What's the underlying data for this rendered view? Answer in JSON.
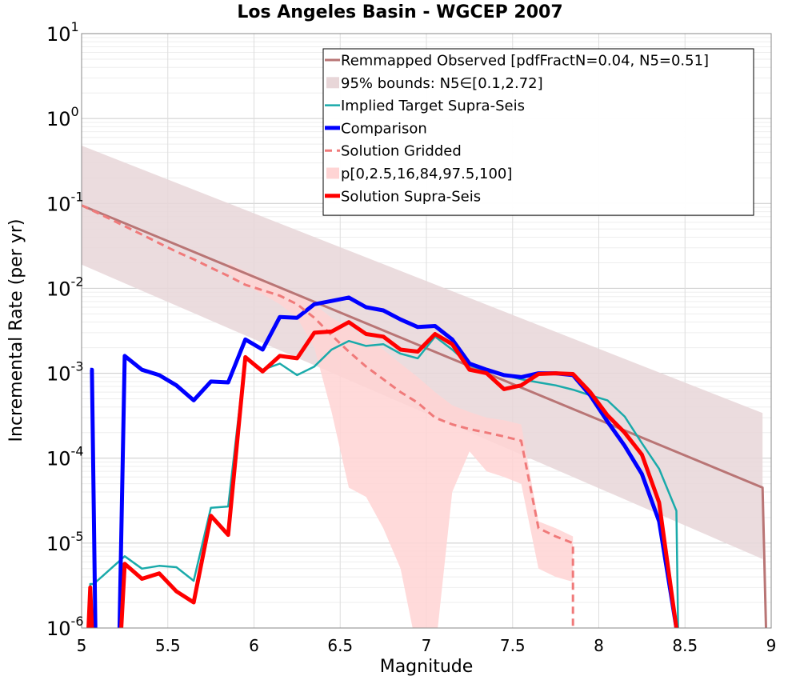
{
  "chart_data": {
    "type": "line",
    "title": "Los Angeles Basin - WGCEP 2007",
    "xlabel": "Magnitude",
    "ylabel": "Incremental Rate (per yr)",
    "xlim": [
      5,
      9
    ],
    "ylim": [
      1e-06,
      10
    ],
    "yscale": "log",
    "grid": true,
    "legend_position": "top-right",
    "x_ticks": [
      "5",
      "5.5",
      "6",
      "6.5",
      "7",
      "7.5",
      "8",
      "8.5",
      "9"
    ],
    "y_ticks": [
      {
        "base": "10",
        "exp": "-6"
      },
      {
        "base": "10",
        "exp": "-5"
      },
      {
        "base": "10",
        "exp": "-4"
      },
      {
        "base": "10",
        "exp": "-3"
      },
      {
        "base": "10",
        "exp": "-2"
      },
      {
        "base": "10",
        "exp": "-1"
      },
      {
        "base": "10",
        "exp": "0"
      },
      {
        "base": "10",
        "exp": "1"
      }
    ],
    "bands": [
      {
        "name": "95% bounds: N5∈[0.1,2.72]",
        "color": "#e8d6d8",
        "x": [
          5.0,
          8.95
        ],
        "lower": [
          0.019,
          6.5e-06
        ],
        "upper": [
          0.48,
          0.00034
        ]
      },
      {
        "name": "p[0,2.5,16,84,97.5,100]",
        "color": "#ffd4d4",
        "x": [
          5.85,
          5.95,
          6.05,
          6.15,
          6.25,
          6.35,
          6.45,
          6.55,
          6.65,
          6.75,
          6.85,
          6.95,
          7.05,
          7.15,
          7.25,
          7.35,
          7.45,
          7.55,
          7.65,
          7.75,
          7.85
        ],
        "lower": [
          0.015,
          0.011,
          0.0085,
          0.0065,
          0.0045,
          0.002,
          0.00035,
          4.5e-05,
          3.5e-05,
          1.5e-05,
          5e-06,
          5e-07,
          5e-07,
          4e-05,
          0.00012,
          7e-05,
          6e-05,
          5e-05,
          5e-06,
          4e-06,
          3.5e-06
        ],
        "upper": [
          0.02,
          0.016,
          0.013,
          0.01,
          0.0085,
          0.0065,
          0.0045,
          0.0035,
          0.0026,
          0.0019,
          0.0013,
          0.0009,
          0.0006,
          0.00042,
          0.00035,
          0.0003,
          0.00028,
          0.00025,
          1.8e-05,
          1.5e-05,
          1.2e-05
        ]
      }
    ],
    "series": [
      {
        "name": "Remmapped Observed [pdfFractN=0.04, N5=0.51]",
        "color": "#b97575",
        "style": "solid",
        "width": 3,
        "x": [
          5.0,
          8.95,
          8.97
        ],
        "y": [
          0.095,
          4.5e-05,
          1e-06
        ]
      },
      {
        "name": "Implied Target Supra-Seis",
        "color": "#1aaaaa",
        "style": "solid",
        "width": 2.5,
        "x": [
          5.05,
          5.05,
          5.07,
          5.25,
          5.35,
          5.45,
          5.55,
          5.65,
          5.75,
          5.85,
          5.95,
          6.05,
          6.15,
          6.25,
          6.35,
          6.45,
          6.55,
          6.65,
          6.75,
          6.85,
          6.95,
          7.05,
          7.15,
          7.25,
          7.35,
          7.45,
          7.55,
          7.65,
          7.75,
          7.85,
          7.95,
          8.05,
          8.15,
          8.25,
          8.35,
          8.45,
          8.46
        ],
        "y": [
          1e-06,
          3.3e-06,
          3.3e-06,
          7e-06,
          5e-06,
          5.4e-06,
          5.2e-06,
          3.6e-06,
          2.6e-05,
          2.7e-05,
          0.00155,
          0.0011,
          0.0013,
          0.00095,
          0.0012,
          0.0019,
          0.0024,
          0.0021,
          0.0022,
          0.0017,
          0.0015,
          0.0027,
          0.0019,
          0.00125,
          0.00105,
          0.00095,
          0.00085,
          0.00078,
          0.00072,
          0.00064,
          0.00055,
          0.00048,
          0.00031,
          0.00015,
          7.5e-05,
          2.4e-05,
          1e-06
        ]
      },
      {
        "name": "Comparison",
        "color": "#0000ff",
        "style": "solid",
        "width": 5,
        "segments": [
          {
            "x": [
              5.05,
              5.06,
              5.08
            ],
            "y": [
              0.0011,
              0.0011,
              1e-06
            ]
          },
          {
            "x": [
              5.22,
              5.25,
              5.35,
              5.45,
              5.55,
              5.65,
              5.75,
              5.85,
              5.95,
              6.05,
              6.15,
              6.25,
              6.35,
              6.45,
              6.55,
              6.65,
              6.75,
              6.85,
              6.95,
              7.05,
              7.15,
              7.25,
              7.35,
              7.45,
              7.55,
              7.65,
              7.75,
              7.85,
              7.95,
              8.05,
              8.15,
              8.25,
              8.35,
              8.45
            ],
            "y": [
              1e-06,
              0.0016,
              0.0011,
              0.00095,
              0.00072,
              0.00048,
              0.0008,
              0.00078,
              0.0025,
              0.0019,
              0.0046,
              0.0045,
              0.0065,
              0.0071,
              0.0078,
              0.006,
              0.0055,
              0.0043,
              0.0035,
              0.0036,
              0.0025,
              0.0013,
              0.0011,
              0.00095,
              0.0009,
              0.001,
              0.001,
              0.00095,
              0.00055,
              0.00027,
              0.00014,
              6.5e-05,
              1.8e-05,
              1e-06
            ]
          }
        ]
      },
      {
        "name": "Solution Gridded",
        "color": "#f07a7a",
        "style": "dashed",
        "width": 3,
        "x": [
          5.0,
          5.05,
          5.15,
          5.25,
          5.35,
          5.45,
          5.55,
          5.65,
          5.75,
          5.85,
          5.95,
          6.05,
          6.15,
          6.25,
          6.35,
          6.45,
          6.55,
          6.65,
          6.75,
          6.85,
          6.95,
          7.05,
          7.15,
          7.25,
          7.35,
          7.45,
          7.55,
          7.65,
          7.75,
          7.85,
          7.85
        ],
        "y": [
          0.095,
          0.085,
          0.068,
          0.054,
          0.043,
          0.034,
          0.027,
          0.022,
          0.0175,
          0.014,
          0.011,
          0.0095,
          0.0082,
          0.0065,
          0.0045,
          0.0028,
          0.0018,
          0.0012,
          0.00085,
          0.0006,
          0.00045,
          0.0003,
          0.00025,
          0.00022,
          0.0002,
          0.00018,
          0.00016,
          1.5e-05,
          1.2e-05,
          1e-05,
          1e-06
        ]
      },
      {
        "name": "Solution Supra-Seis",
        "color": "#ff0000",
        "style": "solid",
        "width": 5,
        "segments": [
          {
            "x": [
              5.04,
              5.05,
              5.06
            ],
            "y": [
              1e-06,
              3e-06,
              1e-06
            ]
          },
          {
            "x": [
              5.23,
              5.25,
              5.35,
              5.45,
              5.55,
              5.65,
              5.75,
              5.85,
              5.95,
              6.05,
              6.15,
              6.25,
              6.35,
              6.45,
              6.55,
              6.65,
              6.75,
              6.85,
              6.95,
              7.05,
              7.15,
              7.25,
              7.35,
              7.45,
              7.55,
              7.65,
              7.75,
              7.85,
              7.95,
              8.05,
              8.15,
              8.25,
              8.35,
              8.45
            ],
            "y": [
              1e-06,
              5.7e-06,
              3.8e-06,
              4.4e-06,
              2.7e-06,
              2e-06,
              2.1e-05,
              1.25e-05,
              0.00155,
              0.00105,
              0.0016,
              0.0015,
              0.003,
              0.0031,
              0.004,
              0.0029,
              0.0027,
              0.0019,
              0.0018,
              0.0029,
              0.0022,
              0.0011,
              0.001,
              0.00065,
              0.00072,
              0.00098,
              0.001,
              0.00098,
              0.0006,
              0.00032,
              0.0002,
              0.00011,
              3e-05,
              1e-06
            ]
          }
        ]
      }
    ],
    "legend": [
      {
        "label": "Remmapped Observed [pdfFractN=0.04, N5=0.51]",
        "color": "#b97575",
        "kind": "line",
        "width": 3
      },
      {
        "label": "95% bounds: N5∈[0.1,2.72]",
        "color": "#e8d6d8",
        "kind": "patch"
      },
      {
        "label": "Implied Target Supra-Seis",
        "color": "#1aaaaa",
        "kind": "line",
        "width": 2.5
      },
      {
        "label": "Comparison",
        "color": "#0000ff",
        "kind": "line",
        "width": 5
      },
      {
        "label": "Solution Gridded",
        "color": "#f07a7a",
        "kind": "dashed",
        "width": 3
      },
      {
        "label": "p[0,2.5,16,84,97.5,100]",
        "color": "#ffd4d4",
        "kind": "patch"
      },
      {
        "label": "Solution Supra-Seis",
        "color": "#ff0000",
        "kind": "line",
        "width": 5
      }
    ]
  }
}
